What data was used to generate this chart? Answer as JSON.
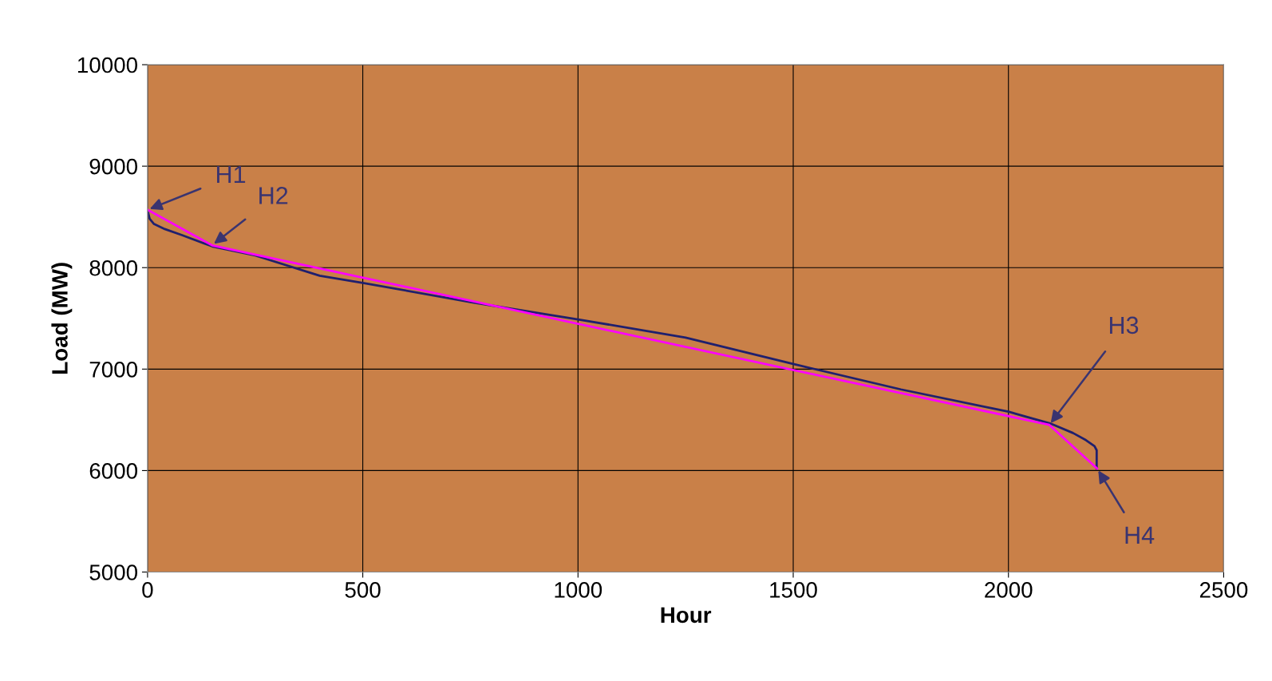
{
  "chart_data": {
    "type": "line",
    "xlabel": "Hour",
    "ylabel": "Load (MW)",
    "xlim": [
      0,
      2500
    ],
    "xticks": [
      0,
      500,
      1000,
      1500,
      2000,
      2500
    ],
    "ylim": [
      5000,
      10000
    ],
    "yticks": [
      5000,
      6000,
      7000,
      8000,
      9000,
      10000
    ],
    "grid": true,
    "legend": false,
    "series": [
      {
        "color": "#1f1f6e",
        "x": [
          0,
          5,
          15,
          40,
          80,
          150,
          250,
          400,
          500,
          750,
          1000,
          1250,
          1500,
          1750,
          2000,
          2100,
          2150,
          2180,
          2200,
          2205,
          2205
        ],
        "values": [
          8560,
          8480,
          8430,
          8380,
          8320,
          8210,
          8120,
          7920,
          7850,
          7660,
          7490,
          7310,
          7050,
          6800,
          6580,
          6460,
          6370,
          6300,
          6240,
          6200,
          6020
        ]
      },
      {
        "color": "#ff00ff",
        "x": [
          0,
          150,
          2095,
          2206
        ],
        "values": [
          8570,
          8220,
          6450,
          6020
        ]
      }
    ],
    "annotations": [
      {
        "text": "H1",
        "x": 0,
        "y": 8570
      },
      {
        "text": "H2",
        "x": 150,
        "y": 8220
      },
      {
        "text": "H3",
        "x": 2095,
        "y": 6450
      },
      {
        "text": "H4",
        "x": 2206,
        "y": 6020
      }
    ]
  }
}
